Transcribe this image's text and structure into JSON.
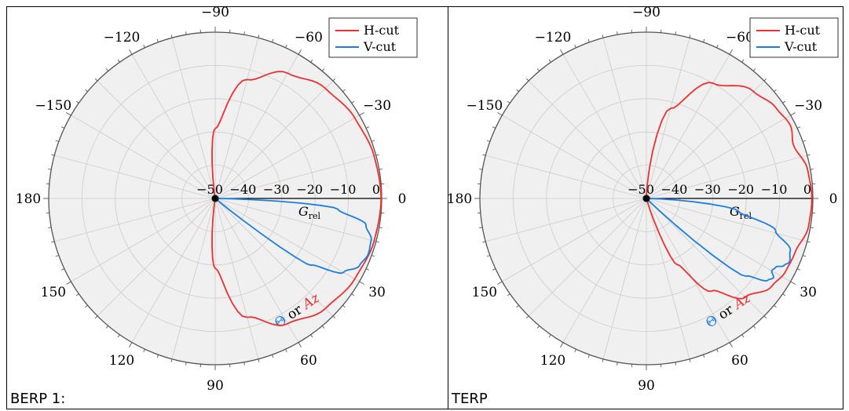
{
  "document": {
    "cells": [
      {
        "caption": "BERP 1:"
      },
      {
        "caption": "TERP"
      }
    ]
  },
  "colors": {
    "hcut": "#ee3030",
    "vcut": "#1a7ee6",
    "bg": "#f0f0f0"
  },
  "chart_data": [
    {
      "type": "polar-line",
      "axis_label_radial": "G_rel",
      "angular_label": {
        "theta_part": "Θ",
        "joiner": "or",
        "az_part": "Az"
      },
      "angular_ticks": [
        0,
        30,
        60,
        90,
        120,
        150,
        180,
        -150,
        -120,
        -90,
        -60,
        -30
      ],
      "angular_direction": "clockwise from right",
      "radial_ticks": [
        -50,
        -40,
        -30,
        -20,
        -10,
        0
      ],
      "rlim": [
        -50,
        0
      ],
      "grid": true,
      "legend": {
        "position": "top-right",
        "entries": [
          "H-cut",
          "V-cut"
        ]
      },
      "series": [
        {
          "name": "H-cut",
          "angles_deg": [
            -100,
            -90,
            -75,
            -60,
            -45,
            -30,
            -15,
            0,
            15,
            30,
            45,
            60,
            75,
            90,
            100
          ],
          "values": [
            -50,
            -29,
            -13,
            -6.5,
            -3.2,
            -1.6,
            -0.6,
            -0.2,
            -0.6,
            -1.6,
            -3.2,
            -6.5,
            -13,
            -29,
            -50
          ]
        },
        {
          "name": "V-cut",
          "angles_deg": [
            0,
            5,
            10,
            15,
            20,
            25,
            30,
            35,
            40
          ],
          "values": [
            -50,
            -13,
            -4,
            -1.5,
            -1.1,
            -2.2,
            -5.5,
            -15,
            -50
          ]
        }
      ]
    },
    {
      "type": "polar-line",
      "axis_label_radial": "G_rel",
      "angular_label": {
        "theta_part": "Θ",
        "joiner": "or",
        "az_part": "Az"
      },
      "angular_ticks": [
        0,
        30,
        60,
        90,
        120,
        150,
        180,
        -150,
        -120,
        -90,
        -60,
        -30
      ],
      "angular_direction": "clockwise from right",
      "radial_ticks": [
        -50,
        -40,
        -30,
        -20,
        -10,
        0
      ],
      "rlim": [
        -50,
        0
      ],
      "grid": true,
      "legend": {
        "position": "top-right",
        "entries": [
          "H-cut",
          "V-cut"
        ]
      },
      "series": [
        {
          "name": "H-cut",
          "angles_deg": [
            -90,
            -75,
            -60,
            -45,
            -35,
            -27,
            -20,
            -10,
            0,
            10,
            20,
            28,
            35,
            45,
            55,
            65,
            75
          ],
          "values": [
            -50,
            -22,
            -10,
            -4.5,
            -2.5,
            -1.5,
            -3,
            -0.8,
            -0.3,
            -0.6,
            -2.5,
            -2.8,
            -4,
            -8,
            -16,
            -28,
            -50
          ]
        },
        {
          "name": "V-cut",
          "angles_deg": [
            0,
            8,
            14,
            20,
            24,
            26,
            28,
            30,
            32,
            34,
            38,
            45
          ],
          "values": [
            -50,
            -22,
            -10,
            -4,
            -3,
            -4,
            -6,
            -6.5,
            -5,
            -6,
            -12,
            -50
          ]
        }
      ]
    }
  ]
}
